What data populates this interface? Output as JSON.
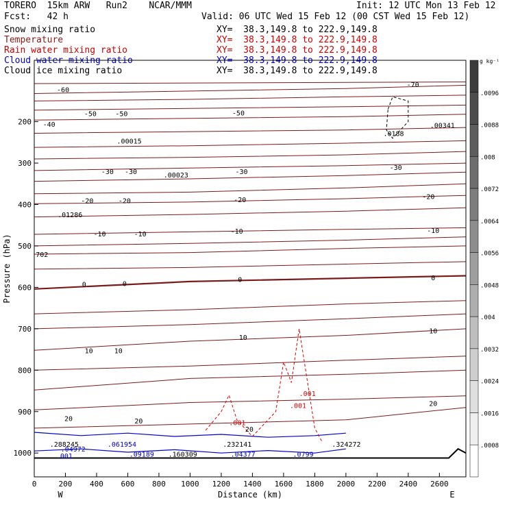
{
  "header": {
    "model": "TORERO  15km ARW   Run2    NCAR/MMM",
    "init": "Init: 12 UTC Mon 13 Feb 12",
    "fcst": "Fcst:   42 h",
    "valid": "Valid: 06 UTC Wed 15 Feb 12 (00 CST Wed 15 Feb 12)"
  },
  "fields": [
    {
      "name": "Snow mixing ratio",
      "xy": "XY=  38.3,149.8 to 222.9,149.8",
      "color": "#000000",
      "xy_color": "#000000"
    },
    {
      "name": "Temperature",
      "xy": "XY=  38.3,149.8 to 222.9,149.8",
      "color": "#8b1a1a",
      "xy_color": "#cc0000"
    },
    {
      "name": "Rain water mixing ratio",
      "xy": "XY=  38.3,149.8 to 222.9,149.8",
      "color": "#cc0000",
      "xy_color": "#cc0000"
    },
    {
      "name": "Cloud water mixing ratio",
      "xy": "XY=  38.3,149.8 to 222.9,149.8",
      "color": "#0000cc",
      "xy_color": "#0000cc"
    },
    {
      "name": "Cloud ice mixing ratio",
      "xy": "XY=  38.3,149.8 to 222.9,149.8",
      "color": "#000000",
      "xy_color": "#000000"
    }
  ],
  "colors": {
    "temperature": "#7a1a1a",
    "rain": "#dd0000",
    "cloud_water": "#0000cc",
    "ice": "#000000"
  },
  "chart_data": {
    "type": "contour",
    "xlabel": "Distance (km)",
    "ylabel": "Pressure (hPa)",
    "xlim": [
      0,
      2770
    ],
    "ylim": [
      1030,
      100
    ],
    "x_ticks": [
      "0",
      "200",
      "400",
      "600",
      "800",
      "1000",
      "1200",
      "1400",
      "1600",
      "1800",
      "2000",
      "2200",
      "2400",
      "2600"
    ],
    "y_ticks": [
      "200",
      "300",
      "400",
      "500",
      "600",
      "700",
      "800",
      "900",
      "1000"
    ],
    "x_end_labels": {
      "left": "W",
      "right": "E"
    },
    "colorbar": {
      "unit": "g kg⁻¹",
      "labels": [
        ".0096",
        ".0088",
        ".008",
        ".0072",
        ".0064",
        ".0056",
        ".0048",
        ".004",
        ".0032",
        ".0024",
        ".0016",
        ".0008"
      ]
    },
    "temperature_labels": [
      {
        "text": "-60",
        "x": 185,
        "p": 122
      },
      {
        "text": "-70",
        "x": 2430,
        "p": 110
      },
      {
        "text": "-50",
        "x": 360,
        "p": 180
      },
      {
        "text": "-50",
        "x": 560,
        "p": 180
      },
      {
        "text": "-50",
        "x": 1310,
        "p": 178
      },
      {
        "text": "-40",
        "x": 95,
        "p": 206
      },
      {
        "text": "-30",
        "x": 470,
        "p": 320
      },
      {
        "text": "-30",
        "x": 620,
        "p": 320
      },
      {
        "text": "-30",
        "x": 1330,
        "p": 320
      },
      {
        "text": "-30",
        "x": 2320,
        "p": 310
      },
      {
        "text": "-20",
        "x": 340,
        "p": 390
      },
      {
        "text": "-20",
        "x": 580,
        "p": 390
      },
      {
        "text": "-20",
        "x": 1320,
        "p": 388
      },
      {
        "text": "-20",
        "x": 2530,
        "p": 380
      },
      {
        "text": "-10",
        "x": 420,
        "p": 470
      },
      {
        "text": "-10",
        "x": 680,
        "p": 470
      },
      {
        "text": "-10",
        "x": 1300,
        "p": 464
      },
      {
        "text": "-10",
        "x": 2560,
        "p": 462
      },
      {
        "text": "0",
        "x": 320,
        "p": 592
      },
      {
        "text": "0",
        "x": 580,
        "p": 590
      },
      {
        "text": "0",
        "x": 1320,
        "p": 580
      },
      {
        "text": "0",
        "x": 2560,
        "p": 576
      },
      {
        "text": "10",
        "x": 350,
        "p": 752
      },
      {
        "text": "10",
        "x": 540,
        "p": 752
      },
      {
        "text": "10",
        "x": 1340,
        "p": 720
      },
      {
        "text": "10",
        "x": 2560,
        "p": 704
      },
      {
        "text": "20",
        "x": 220,
        "p": 916
      },
      {
        "text": "20",
        "x": 670,
        "p": 922
      },
      {
        "text": "20",
        "x": 1380,
        "p": 942
      },
      {
        "text": "20",
        "x": 2560,
        "p": 880
      }
    ],
    "max_labels": [
      {
        "text": ".00015",
        "x": 530,
        "p": 246
      },
      {
        "text": ".00023",
        "x": 830,
        "p": 328
      },
      {
        "text": ".01286",
        "x": 150,
        "p": 424
      },
      {
        "text": ".0188",
        "x": 2240,
        "p": 228
      },
      {
        "text": ".00341",
        "x": 2540,
        "p": 208
      },
      {
        "text": "702",
        "x": 10,
        "p": 520
      },
      {
        "text": ".001",
        "x": 1250,
        "p": 926
      },
      {
        "text": ".001",
        "x": 1640,
        "p": 885
      },
      {
        "text": ".001",
        "x": 1700,
        "p": 856
      },
      {
        "text": ".001",
        "x": 140,
        "p": 1006
      },
      {
        "text": ".288245",
        "x": 100,
        "p": 978
      },
      {
        "text": ".061954",
        "x": 470,
        "p": 978
      },
      {
        "text": ".232141",
        "x": 1210,
        "p": 978
      },
      {
        "text": ".324272",
        "x": 1910,
        "p": 978
      },
      {
        "text": ".04972",
        "x": 170,
        "p": 990
      },
      {
        "text": ".09189",
        "x": 610,
        "p": 1002
      },
      {
        "text": ".160309",
        "x": 860,
        "p": 1002
      },
      {
        "text": ".04377",
        "x": 1260,
        "p": 1002
      },
      {
        "text": ".0799",
        "x": 1660,
        "p": 1002
      }
    ]
  }
}
